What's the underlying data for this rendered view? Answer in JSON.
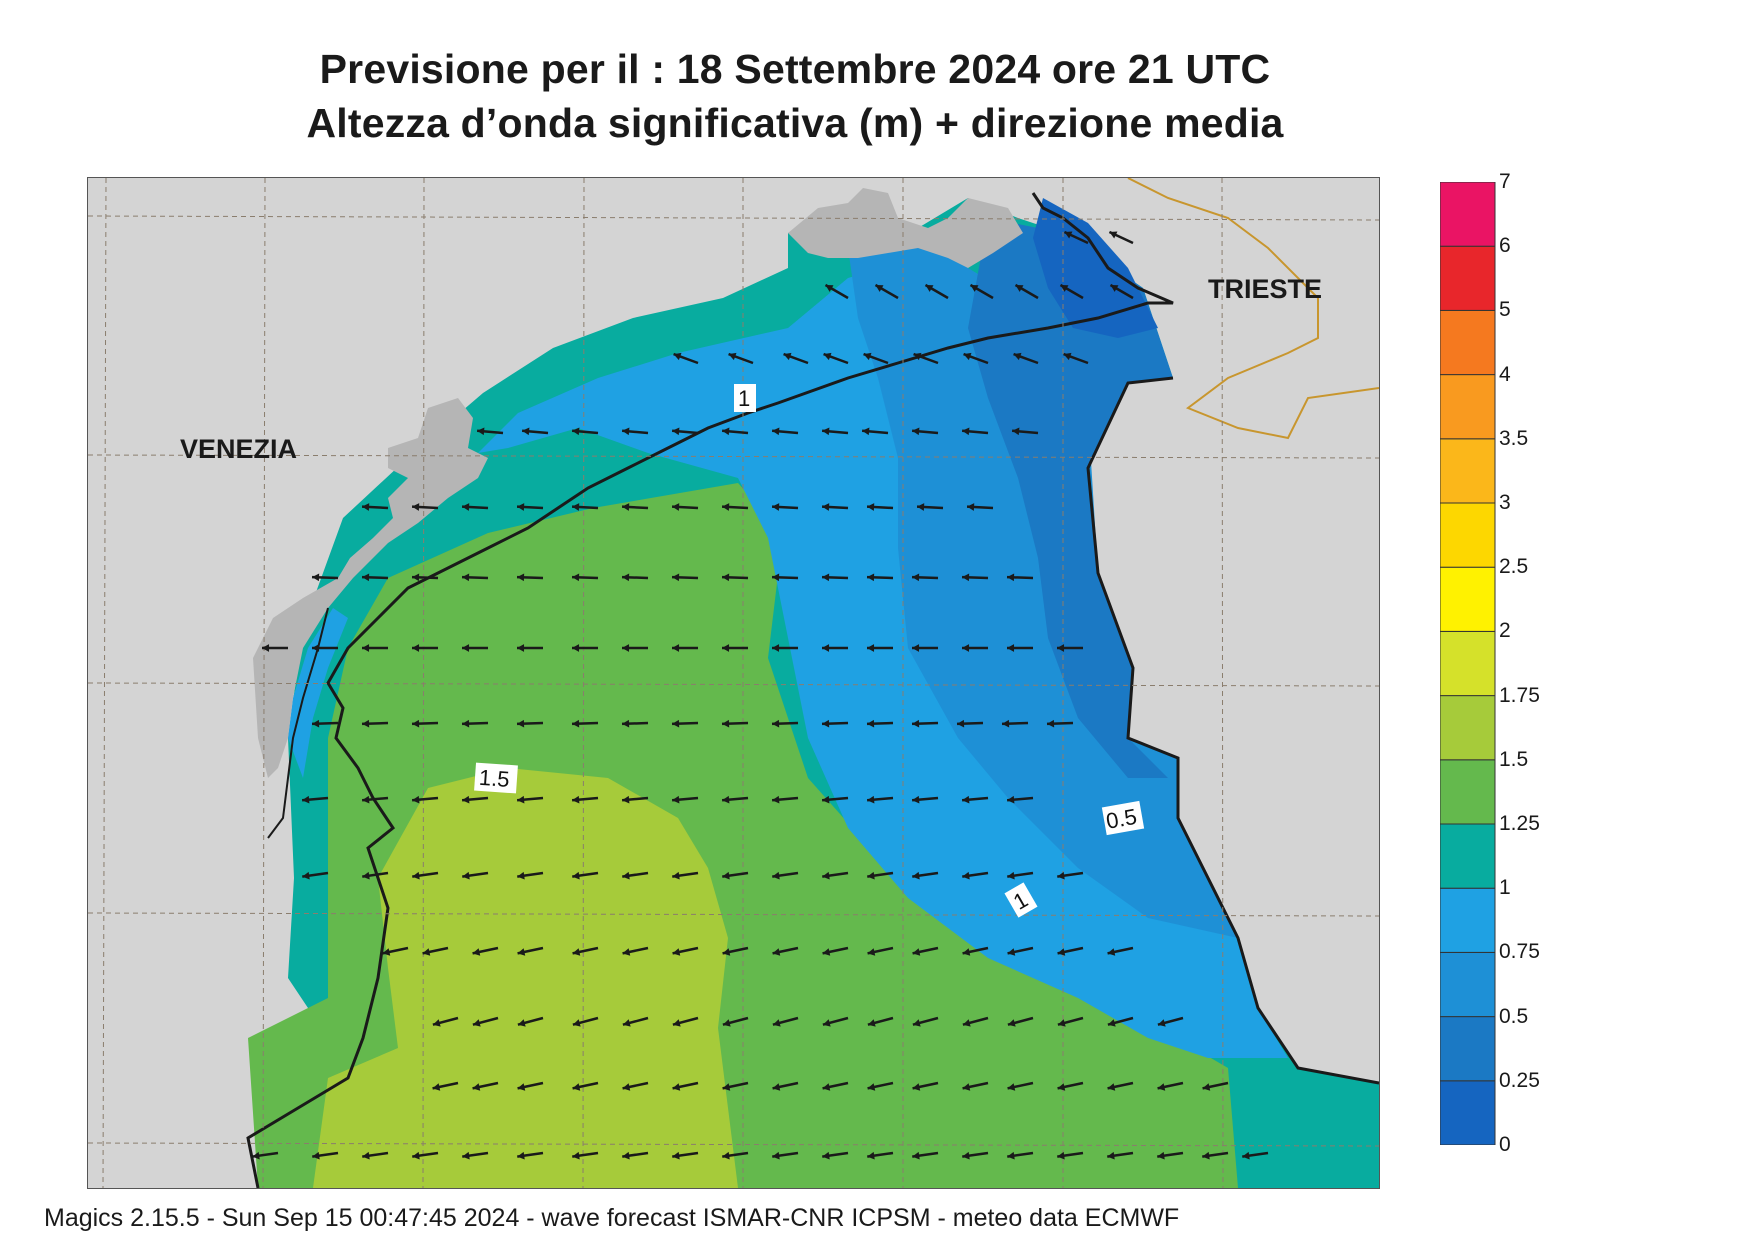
{
  "title": {
    "line1": "Previsione per il  :  18 Settembre 2024   ore 21 UTC",
    "line2": "Altezza d’onda significativa (m) + direzione media"
  },
  "map": {
    "labels": {
      "venezia": "VENEZIA",
      "trieste": "TRIESTE"
    },
    "contour_labels": [
      "1",
      "1.5",
      "0.5",
      "1"
    ],
    "land_color": "#d4d4d4",
    "urban_color": "#b5b5b5",
    "coastline_color": "#1a1a1a",
    "border_color": "#c8962e",
    "grid": true,
    "arrow_direction": "towards west / south-west"
  },
  "colorbar": {
    "ticks": [
      "0",
      "0.25",
      "0.5",
      "0.75",
      "1",
      "1.25",
      "1.5",
      "1.75",
      "2",
      "2.5",
      "3",
      "3.5",
      "4",
      "5",
      "6",
      "7"
    ],
    "colors": [
      "#1565c0",
      "#1b79c4",
      "#1e90d6",
      "#1fa1e3",
      "#08ac9f",
      "#64b94d",
      "#a6cb3a",
      "#d5e12a",
      "#fff200",
      "#fdd700",
      "#fbb71a",
      "#f99a1f",
      "#f5791f",
      "#e8262b",
      "#ea1464"
    ]
  },
  "footer": "Magics 2.15.5 - Sun Sep 15 00:47:45 2024 - wave forecast  ISMAR-CNR  ICPSM - meteo data   ECMWF"
}
